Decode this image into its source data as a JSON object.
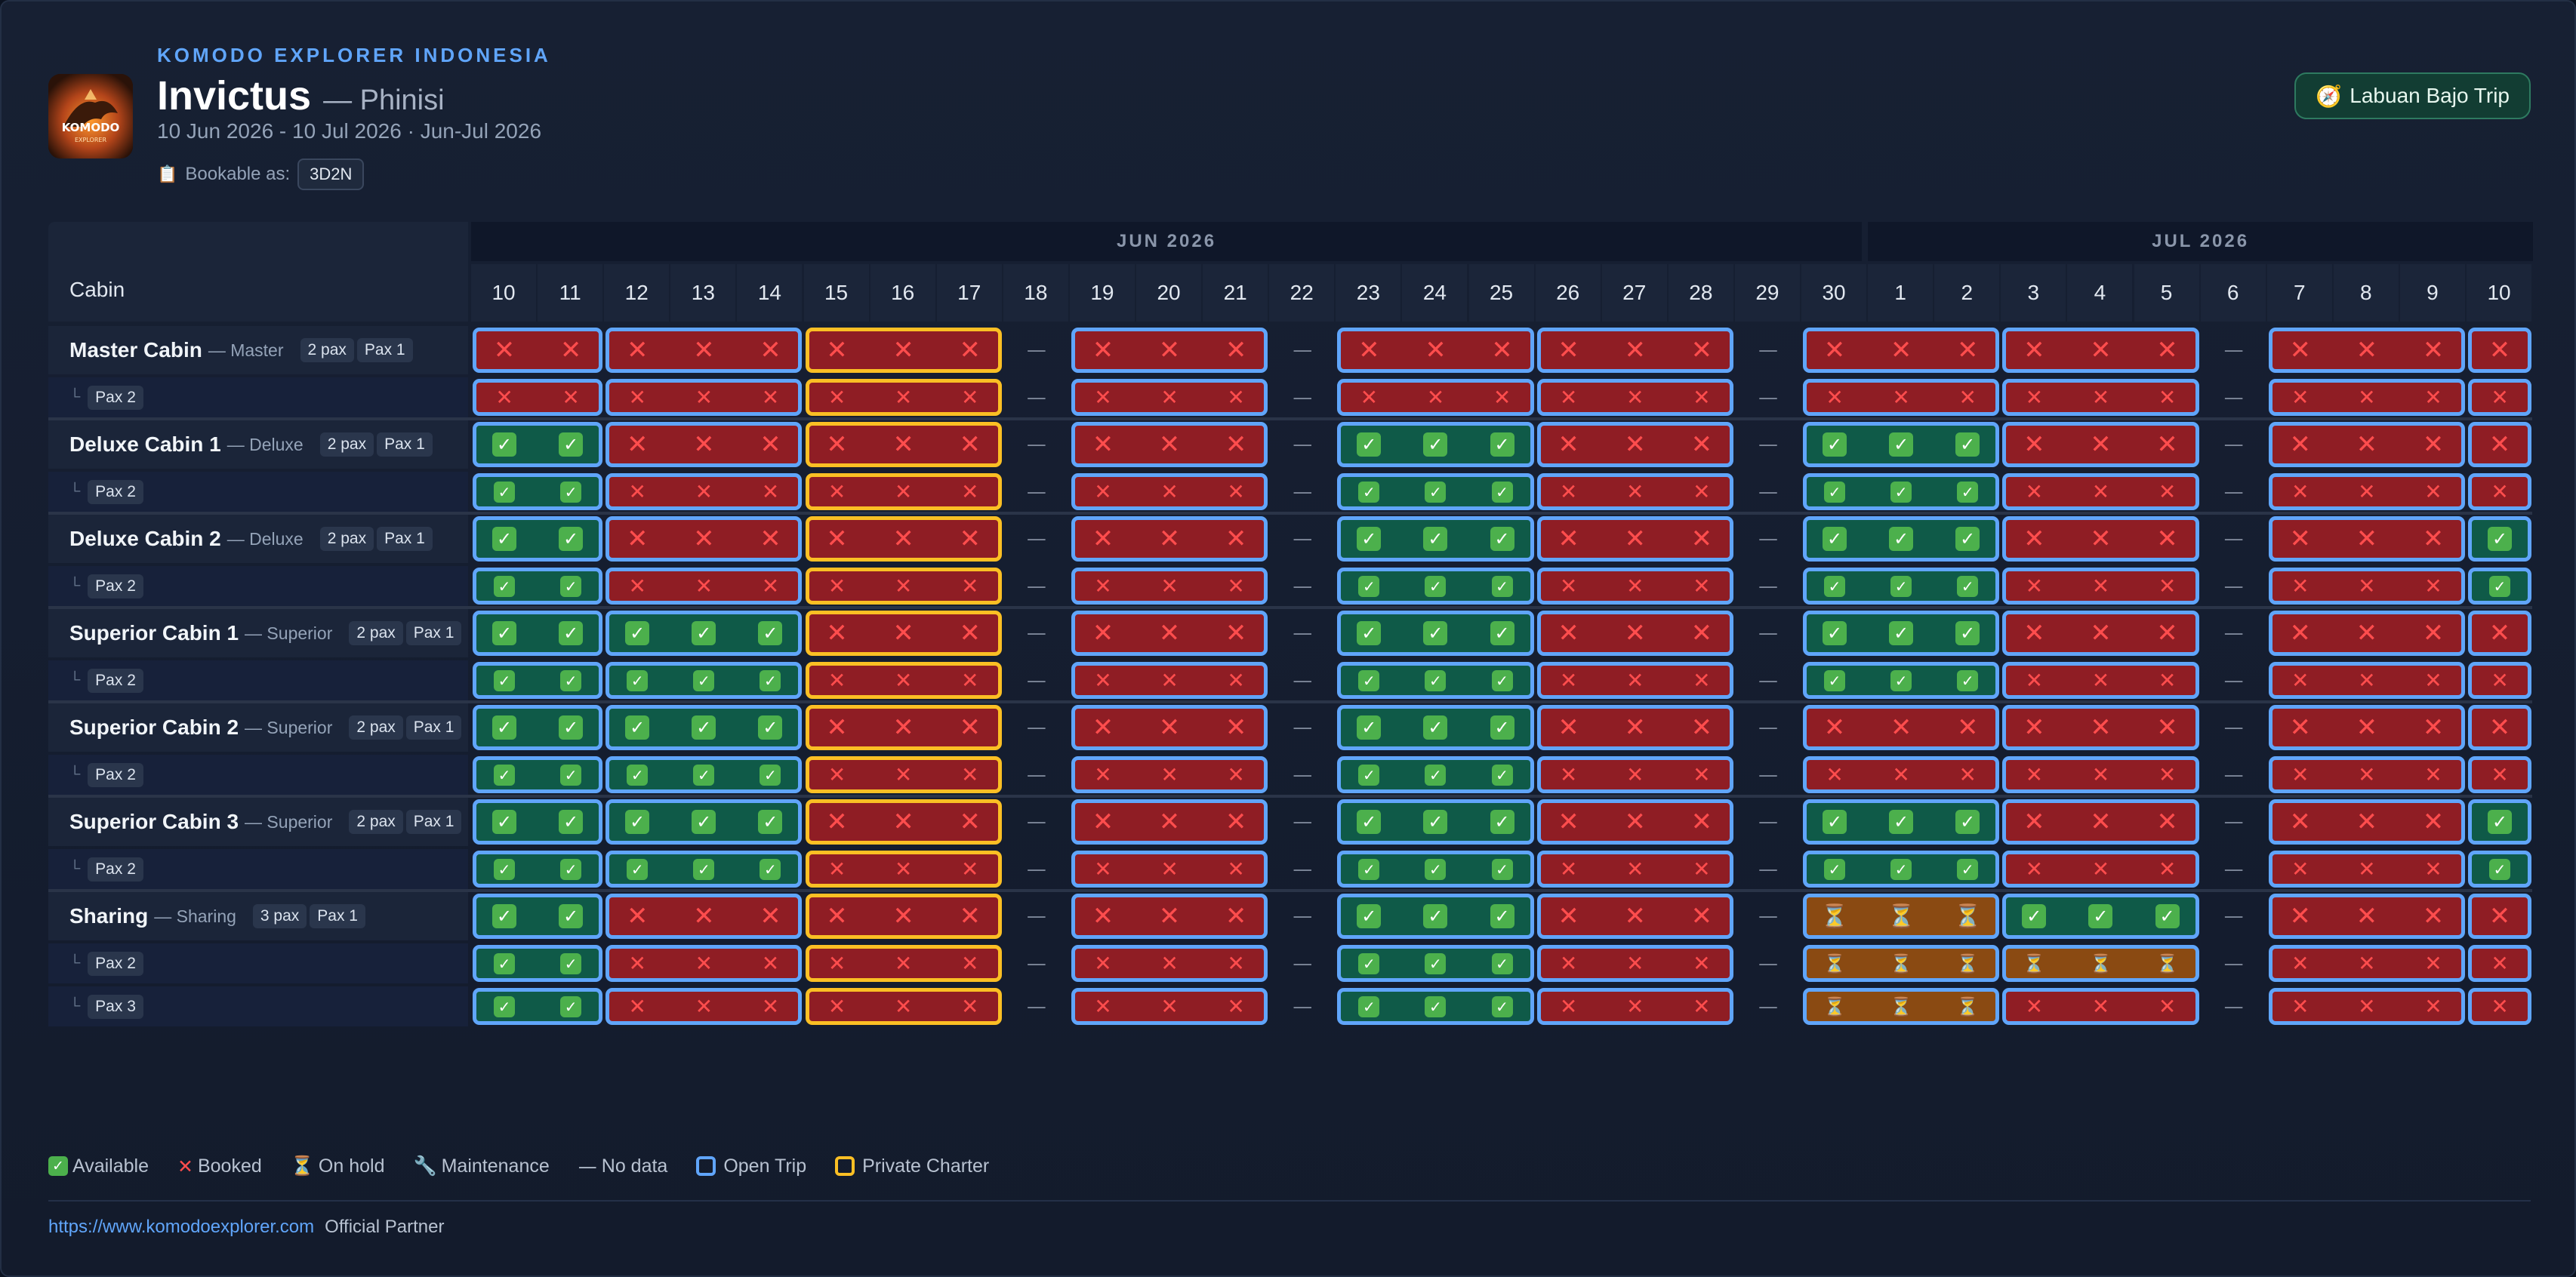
{
  "header": {
    "brand": "KOMODO EXPLORER INDONESIA",
    "logo_text": "KOMODO",
    "logo_subtext": "EXPLORER",
    "vessel": "Invictus",
    "vessel_type": "— Phinisi",
    "date_range": "10 Jun 2026 - 10 Jul 2026 · Jun-Jul 2026",
    "bookable_label": "Bookable as:",
    "bookable_value": "3D2N",
    "trip_button": "Labuan Bajo Trip"
  },
  "calendar": {
    "cabin_column_label": "Cabin",
    "months": [
      {
        "label": "JUN 2026",
        "days": [
          10,
          11,
          12,
          13,
          14,
          15,
          16,
          17,
          18,
          19,
          20,
          21,
          22,
          23,
          24,
          25,
          26,
          27,
          28,
          29,
          30
        ]
      },
      {
        "label": "JUL 2026",
        "days": [
          1,
          2,
          3,
          4,
          5,
          6,
          7,
          8,
          9,
          10
        ]
      }
    ],
    "trips": [
      {
        "start": 0,
        "len": 2,
        "type": "open"
      },
      {
        "start": 2,
        "len": 3,
        "type": "open"
      },
      {
        "start": 5,
        "len": 3,
        "type": "private"
      },
      {
        "start": 9,
        "len": 3,
        "type": "open"
      },
      {
        "start": 13,
        "len": 3,
        "type": "open"
      },
      {
        "start": 16,
        "len": 3,
        "type": "open"
      },
      {
        "start": 20,
        "len": 3,
        "type": "open"
      },
      {
        "start": 23,
        "len": 3,
        "type": "open"
      },
      {
        "start": 27,
        "len": 3,
        "type": "open"
      },
      {
        "start": 30,
        "len": 1,
        "type": "open"
      }
    ],
    "cabins": [
      {
        "name": "Master Cabin",
        "type": "— Master",
        "capacity": "2 pax",
        "rows": [
          {
            "label": "Pax 1",
            "status": "BBBBBBBBBBBBBBBBBBBBBBBBBBBBBBB"
          },
          {
            "label": "Pax 2",
            "status": "BBBBBBBBBBBBBBBBBBBBBBBBBBBBBBB"
          }
        ]
      },
      {
        "name": "Deluxe Cabin 1",
        "type": "— Deluxe",
        "capacity": "2 pax",
        "rows": [
          {
            "label": "Pax 1",
            "status": "AABBBBBBBBBBBAAABBBBAAABBBBBBBB"
          },
          {
            "label": "Pax 2",
            "status": "AABBBBBBBBBBBAAABBBBAAABBBBBBBB"
          }
        ]
      },
      {
        "name": "Deluxe Cabin 2",
        "type": "— Deluxe",
        "capacity": "2 pax",
        "rows": [
          {
            "label": "Pax 1",
            "status": "AABBBBBBBBBBBAAABBBBAAABBBBBBBA"
          },
          {
            "label": "Pax 2",
            "status": "AABBBBBBBBBBBAAABBBBAAABBBBBBBA"
          }
        ]
      },
      {
        "name": "Superior Cabin 1",
        "type": "— Superior",
        "capacity": "2 pax",
        "rows": [
          {
            "label": "Pax 1",
            "status": "AAAAABBBBBBBBAAABBBBAAABBBBBBBB"
          },
          {
            "label": "Pax 2",
            "status": "AAAAABBBBBBBBAAABBBBAAABBBBBBBB"
          }
        ]
      },
      {
        "name": "Superior Cabin 2",
        "type": "— Superior",
        "capacity": "2 pax",
        "rows": [
          {
            "label": "Pax 1",
            "status": "AAAAABBBBBBBBAAABBBBBBBBBBBBBBB"
          },
          {
            "label": "Pax 2",
            "status": "AAAAABBBBBBBBAAABBBBBBBBBBBBBBB"
          }
        ]
      },
      {
        "name": "Superior Cabin 3",
        "type": "— Superior",
        "capacity": "2 pax",
        "rows": [
          {
            "label": "Pax 1",
            "status": "AAAAABBBBBBBBAAABBBBAAABBBBBBBA"
          },
          {
            "label": "Pax 2",
            "status": "AAAAABBBBBBBBAAABBBBAAABBBBBBBA"
          }
        ]
      },
      {
        "name": "Sharing",
        "type": "— Sharing",
        "capacity": "3 pax",
        "rows": [
          {
            "label": "Pax 1",
            "status": "AABBBBBBBBBBBAAABBBBHHHAAABBBBB"
          },
          {
            "label": "Pax 2",
            "status": "AABBBBBBBBBBBAAABBBBHHHHHHBBBBB"
          },
          {
            "label": "Pax 3",
            "status": "AABBBBBBBBBBBAAABBBBHHHBBBBBBBB"
          }
        ]
      }
    ],
    "no_data_symbol": "—"
  },
  "legend": {
    "available": "Available",
    "booked": "Booked",
    "hold": "On hold",
    "maintenance": "Maintenance",
    "nodata": "No data",
    "open": "Open Trip",
    "private": "Private Charter"
  },
  "footer": {
    "url": "https://www.komodoexplorer.com",
    "partner": "Official Partner"
  },
  "colors": {
    "available_bg": "#0f5a48",
    "booked_bg": "#8f1d24",
    "hold_bg": "#8a4a12",
    "open_trip_border": "#60a5fa",
    "private_charter_border": "#fbbf24",
    "accent": "#60a5fa"
  }
}
